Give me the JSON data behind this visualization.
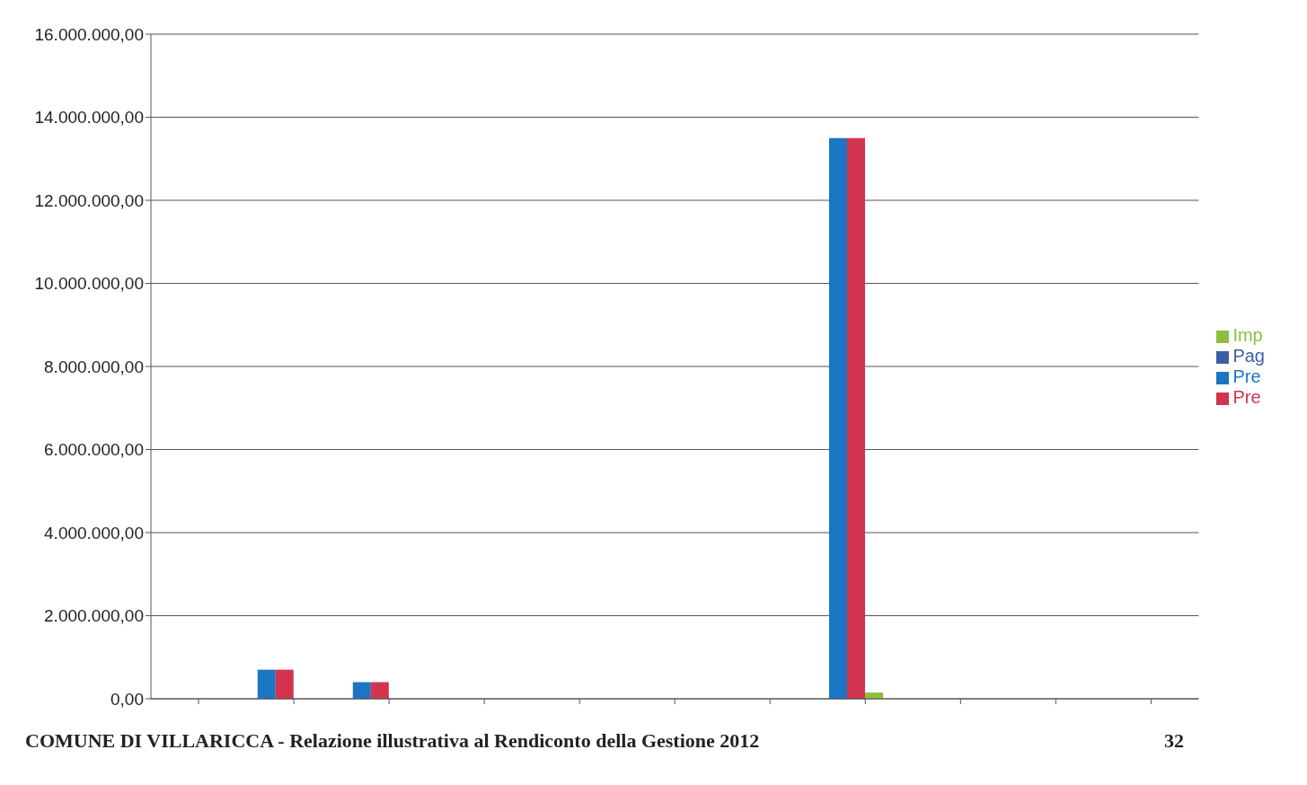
{
  "chart_data": {
    "type": "bar",
    "categories": [
      null,
      null,
      null,
      null,
      null,
      null,
      null,
      null,
      null,
      null,
      null
    ],
    "series": [
      {
        "name": "Pre",
        "color": "#1a75c2",
        "values": [
          null,
          700000,
          400000,
          null,
          null,
          null,
          null,
          13500000,
          null,
          null,
          null
        ]
      },
      {
        "name": "Pre",
        "color": "#d2344f",
        "values": [
          null,
          700000,
          400000,
          null,
          null,
          null,
          null,
          13500000,
          null,
          null,
          null
        ]
      },
      {
        "name": "Imp",
        "color": "#8cbf3f",
        "values": [
          null,
          null,
          null,
          null,
          null,
          null,
          null,
          150000,
          null,
          null,
          null
        ]
      },
      {
        "name": "Pag",
        "color": "#3c5ea8",
        "values": [
          null,
          null,
          null,
          null,
          null,
          null,
          null,
          null,
          null,
          null,
          null
        ]
      }
    ],
    "ylim": [
      0,
      16000000
    ],
    "yticks": [
      {
        "value": 0,
        "label": "0,00"
      },
      {
        "value": 2000000,
        "label": "2.000.000,00"
      },
      {
        "value": 4000000,
        "label": "4.000.000,00"
      },
      {
        "value": 6000000,
        "label": "6.000.000,00"
      },
      {
        "value": 8000000,
        "label": "8.000.000,00"
      },
      {
        "value": 10000000,
        "label": "10.000.000,00"
      },
      {
        "value": 12000000,
        "label": "12.000.000,00"
      },
      {
        "value": 14000000,
        "label": "14.000.000,00"
      },
      {
        "value": 16000000,
        "label": "16.000.000,00"
      }
    ],
    "grid": "y",
    "legend": "right",
    "annotations": [
      "COMUNE DI VILLARICCA - Relazione illustrativa al Rendiconto della Gestione 2012",
      "32"
    ]
  }
}
